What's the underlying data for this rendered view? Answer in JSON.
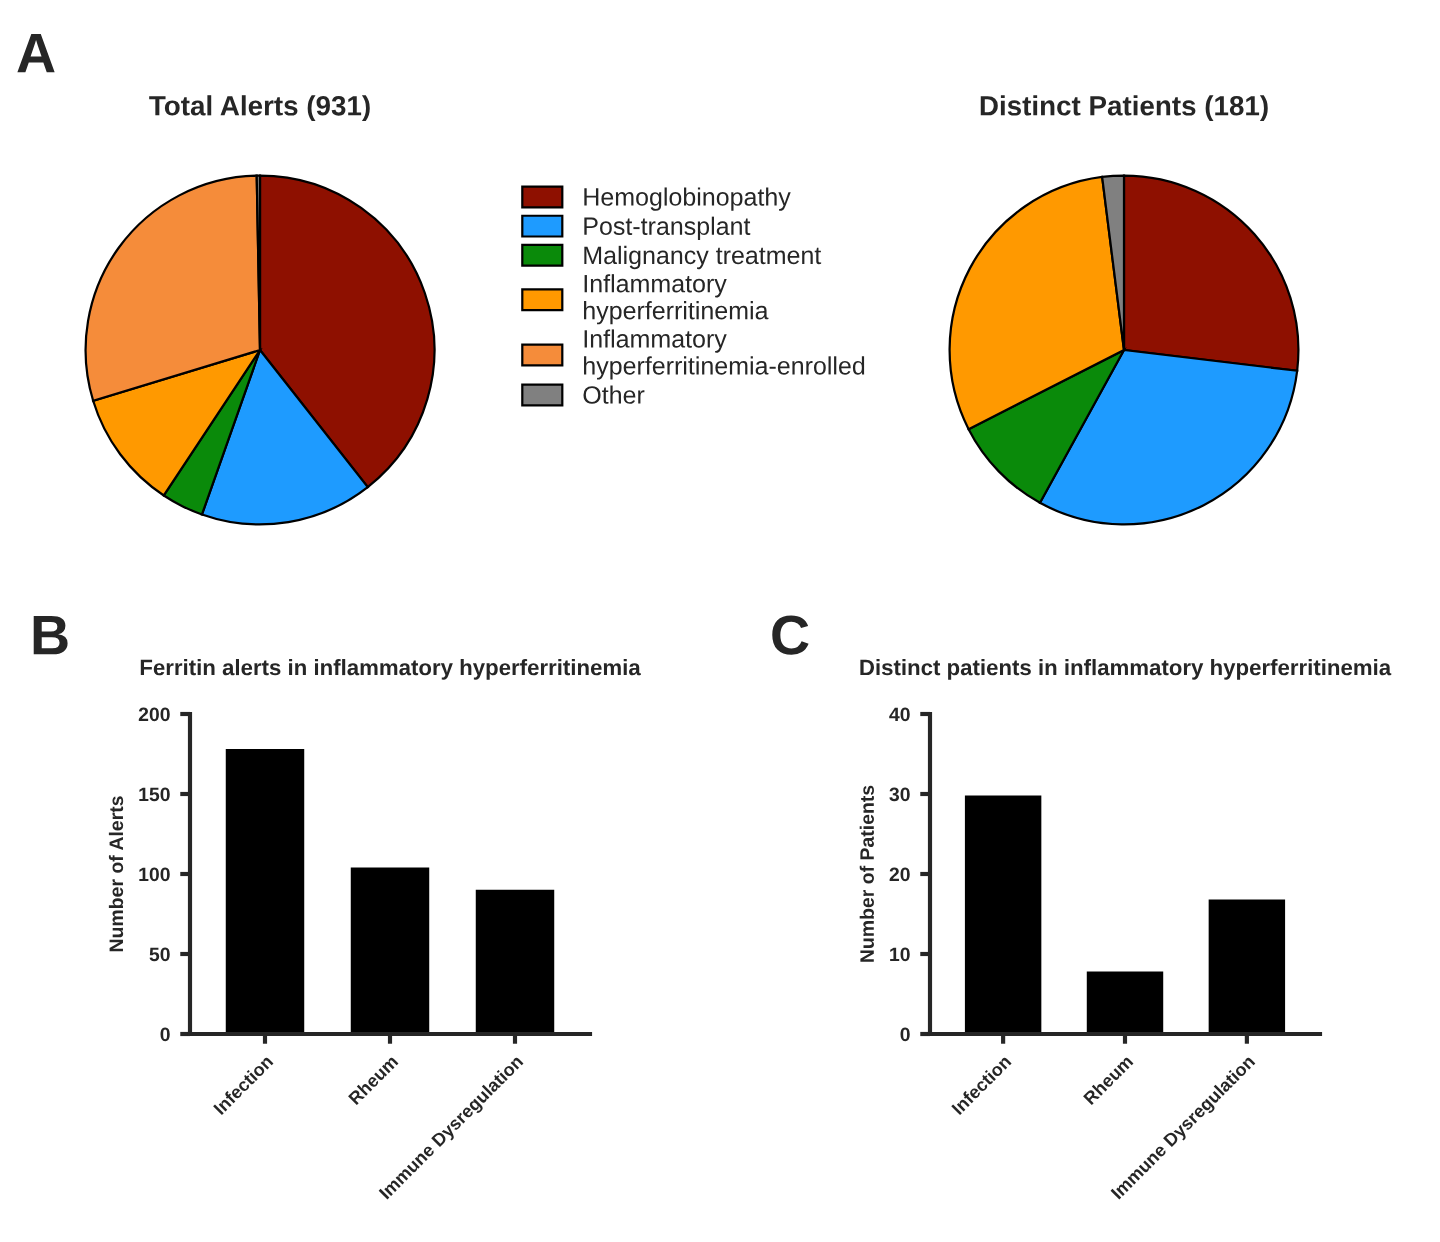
{
  "chart_data": [
    {
      "type": "pie",
      "title": "Total Alerts (931)",
      "categories": [
        "Hemoglobinopathy",
        "Post-transplant",
        "Malignancy treatment",
        "Inflammatory\nhyperferritinemia",
        "Inflammatory\nhyperferritinemia-enrolled",
        "Other"
      ],
      "values": [
        39.4,
        16.0,
        3.9,
        11.0,
        29.4,
        0.3
      ],
      "colors": [
        "#8e1000",
        "#1e9bff",
        "#0a8a0a",
        "#ff9900",
        "#f58c3a",
        "#808080"
      ],
      "legend": "right",
      "annotations": [
        "A"
      ]
    },
    {
      "type": "pie",
      "title": "Distinct Patients (181)",
      "categories": [
        null,
        null,
        null,
        null,
        null
      ],
      "values": [
        26.9,
        31.1,
        9.5,
        30.5,
        2.0
      ],
      "colors": [
        "#8e1000",
        "#1e9bff",
        "#0a8a0a",
        "#ff9900",
        "#808080"
      ]
    },
    {
      "type": "bar",
      "title": "Ferritin alerts in inflammatory hyperferritinemia",
      "ylabel": "Number of Alerts",
      "categories": [
        "Infection",
        "Rheum",
        "Immune Dysregulation"
      ],
      "values": [
        179,
        105,
        91
      ],
      "color": "#000000",
      "ylim": [
        0,
        200
      ],
      "yticks": [
        0,
        50,
        100,
        150,
        200
      ],
      "annotations": [
        "B"
      ]
    },
    {
      "type": "bar",
      "title": "Distinct patients in inflammatory hyperferritinemia",
      "ylabel": "Number of Patients",
      "categories": [
        "Infection",
        "Rheum",
        "Immune Dysregulation"
      ],
      "values": [
        30,
        8,
        17
      ],
      "color": "#000000",
      "ylim": [
        0,
        40
      ],
      "yticks": [
        0,
        10,
        20,
        30,
        40
      ],
      "annotations": [
        "C"
      ]
    }
  ]
}
